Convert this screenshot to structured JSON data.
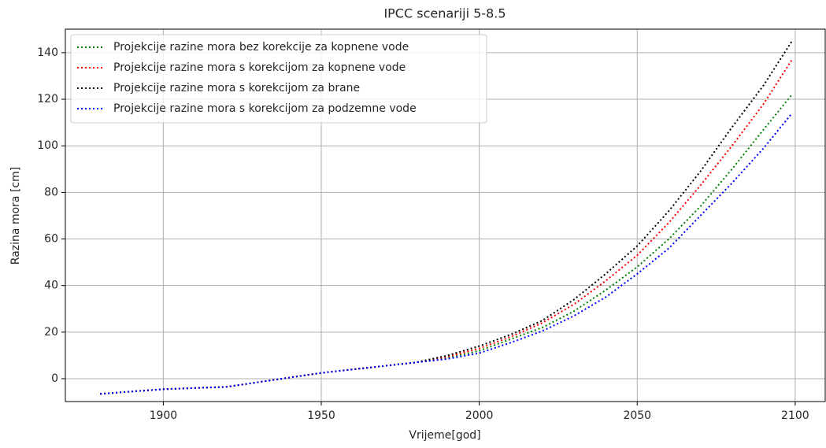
{
  "chart_data": {
    "type": "line",
    "title": "IPCC scenariji 5-8.5",
    "xlabel": "Vrijeme[god]",
    "ylabel": "Razina mora [cm]",
    "x": [
      1880,
      1890,
      1900,
      1910,
      1920,
      1930,
      1940,
      1950,
      1960,
      1970,
      1980,
      1990,
      2000,
      2010,
      2020,
      2030,
      2040,
      2050,
      2060,
      2070,
      2080,
      2090,
      2099
    ],
    "series": [
      {
        "name": "Projekcije razine mora bez korekcije za kopnene vode",
        "color": "green",
        "values": [
          -6.5,
          -5.5,
          -4.5,
          -4,
          -3.5,
          -1.5,
          0.5,
          2.5,
          4,
          5.5,
          7,
          9,
          12,
          17,
          22,
          29,
          38,
          48,
          60,
          74,
          90,
          107,
          122
        ]
      },
      {
        "name": "Projekcije razine mora s korekcijom za kopnene vode",
        "color": "red",
        "values": [
          -6.5,
          -5.5,
          -4.5,
          -4,
          -3.5,
          -1.5,
          0.5,
          2.5,
          4,
          5.5,
          7,
          9.5,
          13,
          18,
          24,
          32,
          42,
          53,
          67,
          83,
          100,
          118,
          137
        ]
      },
      {
        "name": "Projekcije razine mora s korekcijom za brane",
        "color": "black",
        "values": [
          -6.5,
          -5.5,
          -4.5,
          -4,
          -3.5,
          -1.5,
          0.5,
          2.5,
          4,
          5.5,
          7,
          10,
          14,
          19,
          25,
          34,
          45,
          57,
          72,
          89,
          108,
          126,
          145
        ]
      },
      {
        "name": "Projekcije razine mora s korekcijom za podzemne vode",
        "color": "blue",
        "values": [
          -6.5,
          -5.5,
          -4.5,
          -4,
          -3.5,
          -1.5,
          0.5,
          2.5,
          4,
          5.5,
          7,
          8.5,
          11,
          15.5,
          20.5,
          27,
          35,
          45,
          56,
          70,
          84,
          99,
          114
        ]
      }
    ],
    "xlim": [
      1869,
      2109.5
    ],
    "ylim": [
      -9.8,
      150.1
    ],
    "xticks": [
      1900,
      1950,
      2000,
      2050,
      2100
    ],
    "yticks": [
      0,
      20,
      40,
      60,
      80,
      100,
      120,
      140
    ],
    "grid": true,
    "legend": "upper left",
    "line_style": "dotted"
  }
}
